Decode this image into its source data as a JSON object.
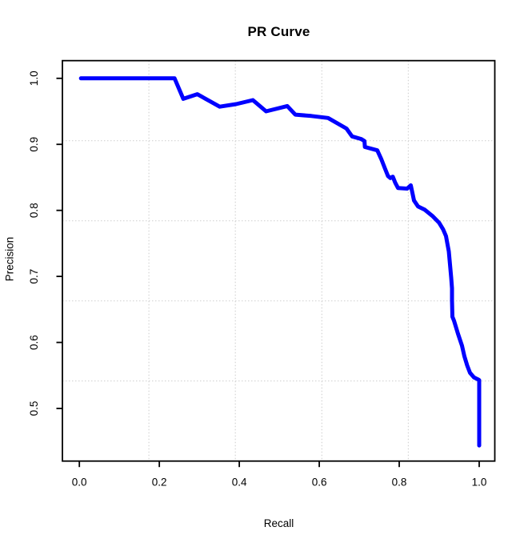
{
  "chart_data": {
    "type": "line",
    "title": "PR Curve",
    "xlabel": "Recall",
    "ylabel": "Precision",
    "xlim": [
      -0.04,
      1.04
    ],
    "ylim": [
      0.42,
      1.02
    ],
    "background": "#FFFFFF",
    "axis_color": "#000000",
    "x_ticks": {
      "values": [
        0.0,
        0.2,
        0.4,
        0.6,
        0.8,
        1.0
      ],
      "labels": [
        "0.0",
        "0.2",
        "0.4",
        "0.6",
        "0.8",
        "1.0"
      ]
    },
    "y_ticks": {
      "values": [
        0.5,
        0.6,
        0.7,
        0.8,
        0.9,
        1.0
      ],
      "labels": [
        "0.5",
        "0.6",
        "0.7",
        "0.8",
        "0.9",
        "1.0"
      ]
    },
    "grid": {
      "nx": 5,
      "ny": 5,
      "color": "#D3D3D3",
      "line_style": "dotted"
    },
    "legend": null,
    "series": [
      {
        "name": "PR curve",
        "color": "#0000FF",
        "line_width": 5,
        "points": [
          [
            0.004,
            1.0
          ],
          [
            0.238,
            1.0
          ],
          [
            0.26,
            0.969
          ],
          [
            0.295,
            0.976
          ],
          [
            0.351,
            0.957
          ],
          [
            0.392,
            0.961
          ],
          [
            0.434,
            0.967
          ],
          [
            0.467,
            0.95
          ],
          [
            0.52,
            0.958
          ],
          [
            0.54,
            0.945
          ],
          [
            0.58,
            0.943
          ],
          [
            0.622,
            0.94
          ],
          [
            0.668,
            0.924
          ],
          [
            0.682,
            0.912
          ],
          [
            0.705,
            0.908
          ],
          [
            0.713,
            0.905
          ],
          [
            0.714,
            0.896
          ],
          [
            0.745,
            0.891
          ],
          [
            0.755,
            0.878
          ],
          [
            0.764,
            0.864
          ],
          [
            0.772,
            0.852
          ],
          [
            0.778,
            0.849
          ],
          [
            0.784,
            0.851
          ],
          [
            0.79,
            0.842
          ],
          [
            0.797,
            0.834
          ],
          [
            0.82,
            0.833
          ],
          [
            0.829,
            0.838
          ],
          [
            0.837,
            0.815
          ],
          [
            0.847,
            0.806
          ],
          [
            0.864,
            0.801
          ],
          [
            0.884,
            0.791
          ],
          [
            0.9,
            0.781
          ],
          [
            0.91,
            0.771
          ],
          [
            0.917,
            0.761
          ],
          [
            0.92,
            0.751
          ],
          [
            0.924,
            0.738
          ],
          [
            0.927,
            0.718
          ],
          [
            0.93,
            0.698
          ],
          [
            0.932,
            0.682
          ],
          [
            0.932,
            0.664
          ],
          [
            0.933,
            0.639
          ],
          [
            0.937,
            0.633
          ],
          [
            0.947,
            0.613
          ],
          [
            0.957,
            0.595
          ],
          [
            0.963,
            0.579
          ],
          [
            0.97,
            0.565
          ],
          [
            0.977,
            0.554
          ],
          [
            0.987,
            0.547
          ],
          [
            0.997,
            0.544
          ],
          [
            1.0,
            0.543
          ],
          [
            1.0,
            0.444
          ]
        ]
      }
    ]
  }
}
